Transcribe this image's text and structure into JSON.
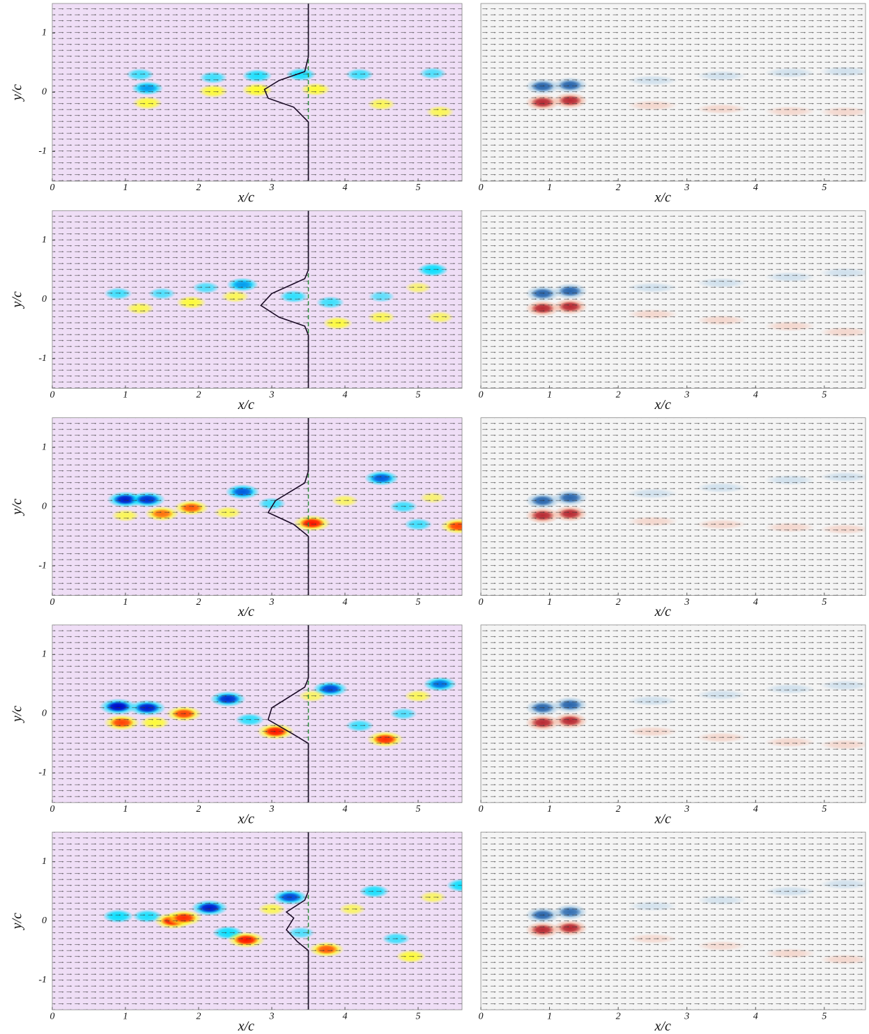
{
  "chart_data": [
    {
      "type": "field",
      "xlabel": "x/c",
      "ylabel": "y/c",
      "xlim": [
        0,
        5.6
      ],
      "ylim": [
        -1.5,
        1.5
      ],
      "xticks": [
        0,
        1,
        2,
        3,
        4,
        5
      ],
      "yticks": [
        -1,
        0,
        1
      ],
      "background": "#efdef6",
      "colors": [
        "#0000c8",
        "#00e0ff",
        "#ffff20",
        "#ff1000"
      ],
      "reference_x": 3.5,
      "profile": {
        "x": [
          3.5,
          3.5,
          3.45,
          3.1,
          2.9,
          2.95,
          3.3,
          3.5,
          3.5
        ],
        "y": [
          1.5,
          0.6,
          0.35,
          0.2,
          0.05,
          -0.1,
          -0.25,
          -0.5,
          -1.5
        ]
      },
      "vortices": [
        {
          "x": 1.3,
          "y": 0.07,
          "value": -0.6
        },
        {
          "x": 1.2,
          "y": 0.3,
          "value": -0.4
        },
        {
          "x": 2.2,
          "y": 0.25,
          "value": -0.4
        },
        {
          "x": 2.8,
          "y": 0.28,
          "value": -0.5
        },
        {
          "x": 3.4,
          "y": 0.3,
          "value": -0.5
        },
        {
          "x": 4.2,
          "y": 0.3,
          "value": -0.4
        },
        {
          "x": 5.2,
          "y": 0.32,
          "value": -0.35
        },
        {
          "x": 1.3,
          "y": -0.18,
          "value": 0.5
        },
        {
          "x": 2.2,
          "y": 0.02,
          "value": 0.5
        },
        {
          "x": 2.8,
          "y": 0.04,
          "value": 0.55
        },
        {
          "x": 3.6,
          "y": 0.05,
          "value": 0.5
        },
        {
          "x": 4.5,
          "y": -0.2,
          "value": 0.4
        },
        {
          "x": 5.3,
          "y": -0.33,
          "value": 0.4
        }
      ]
    },
    {
      "type": "field",
      "xlabel": "x/c",
      "xlim": [
        0,
        5.6
      ],
      "ylim": [
        -1.5,
        1.5
      ],
      "xticks": [
        0,
        1,
        2,
        3,
        4,
        5
      ],
      "background": "#f4f4f4",
      "colors": [
        "#1c5aa6",
        "#9cc4e2",
        "#f3ad96",
        "#b01a28"
      ],
      "vortices": [
        {
          "x": 0.9,
          "y": 0.1,
          "value": -0.9
        },
        {
          "x": 1.3,
          "y": 0.12,
          "value": -0.9
        },
        {
          "x": 0.9,
          "y": -0.17,
          "value": 0.9
        },
        {
          "x": 1.3,
          "y": -0.14,
          "value": 0.9
        },
        {
          "x": 2.5,
          "y": 0.2,
          "value": -0.15
        },
        {
          "x": 3.5,
          "y": 0.28,
          "value": -0.15
        },
        {
          "x": 4.5,
          "y": 0.33,
          "value": -0.15
        },
        {
          "x": 5.3,
          "y": 0.35,
          "value": -0.15
        },
        {
          "x": 2.5,
          "y": -0.22,
          "value": 0.15
        },
        {
          "x": 3.5,
          "y": -0.28,
          "value": 0.15
        },
        {
          "x": 4.5,
          "y": -0.32,
          "value": 0.15
        },
        {
          "x": 5.3,
          "y": -0.33,
          "value": 0.15
        }
      ]
    },
    {
      "type": "field",
      "xlabel": "x/c",
      "ylabel": "y/c",
      "xlim": [
        0,
        5.6
      ],
      "ylim": [
        -1.5,
        1.5
      ],
      "xticks": [
        0,
        1,
        2,
        3,
        4,
        5
      ],
      "yticks": [
        -1,
        0,
        1
      ],
      "background": "#efdef6",
      "colors": [
        "#0000c8",
        "#00e0ff",
        "#ffff20",
        "#ff1000"
      ],
      "reference_x": 3.5,
      "profile": {
        "x": [
          3.5,
          3.5,
          3.45,
          3.0,
          2.85,
          3.1,
          3.45,
          3.5,
          3.5
        ],
        "y": [
          1.5,
          0.5,
          0.35,
          0.1,
          -0.1,
          -0.3,
          -0.45,
          -0.6,
          -1.5
        ]
      },
      "vortices": [
        {
          "x": 0.9,
          "y": 0.1,
          "value": -0.4
        },
        {
          "x": 1.5,
          "y": 0.1,
          "value": -0.35
        },
        {
          "x": 2.1,
          "y": 0.2,
          "value": -0.35
        },
        {
          "x": 2.6,
          "y": 0.25,
          "value": -0.6
        },
        {
          "x": 3.3,
          "y": 0.05,
          "value": -0.45
        },
        {
          "x": 3.8,
          "y": -0.05,
          "value": -0.4
        },
        {
          "x": 4.5,
          "y": 0.05,
          "value": -0.3
        },
        {
          "x": 5.2,
          "y": 0.5,
          "value": -0.55
        },
        {
          "x": 1.2,
          "y": -0.15,
          "value": 0.4
        },
        {
          "x": 1.9,
          "y": -0.05,
          "value": 0.5
        },
        {
          "x": 2.5,
          "y": 0.05,
          "value": 0.4
        },
        {
          "x": 3.9,
          "y": -0.4,
          "value": 0.5
        },
        {
          "x": 4.5,
          "y": -0.3,
          "value": 0.4
        },
        {
          "x": 5.3,
          "y": -0.3,
          "value": 0.35
        },
        {
          "x": 5.0,
          "y": 0.2,
          "value": 0.3
        }
      ]
    },
    {
      "type": "field",
      "xlabel": "x/c",
      "xlim": [
        0,
        5.6
      ],
      "ylim": [
        -1.5,
        1.5
      ],
      "xticks": [
        0,
        1,
        2,
        3,
        4,
        5
      ],
      "background": "#f4f4f4",
      "colors": [
        "#1c5aa6",
        "#9cc4e2",
        "#f3ad96",
        "#b01a28"
      ],
      "vortices": [
        {
          "x": 0.9,
          "y": 0.1,
          "value": -0.9
        },
        {
          "x": 1.3,
          "y": 0.14,
          "value": -0.9
        },
        {
          "x": 0.9,
          "y": -0.15,
          "value": 0.9
        },
        {
          "x": 1.3,
          "y": -0.12,
          "value": 0.9
        },
        {
          "x": 2.5,
          "y": 0.2,
          "value": -0.15
        },
        {
          "x": 3.5,
          "y": 0.28,
          "value": -0.15
        },
        {
          "x": 4.5,
          "y": 0.38,
          "value": -0.15
        },
        {
          "x": 5.3,
          "y": 0.45,
          "value": -0.15
        },
        {
          "x": 2.5,
          "y": -0.25,
          "value": 0.15
        },
        {
          "x": 3.5,
          "y": -0.35,
          "value": 0.15
        },
        {
          "x": 4.5,
          "y": -0.45,
          "value": 0.15
        },
        {
          "x": 5.3,
          "y": -0.55,
          "value": 0.15
        }
      ]
    },
    {
      "type": "field",
      "xlabel": "x/c",
      "ylabel": "y/c",
      "xlim": [
        0,
        5.6
      ],
      "ylim": [
        -1.5,
        1.5
      ],
      "xticks": [
        0,
        1,
        2,
        3,
        4,
        5
      ],
      "yticks": [
        -1,
        0,
        1
      ],
      "background": "#efdef6",
      "colors": [
        "#0000c8",
        "#00e0ff",
        "#ffff20",
        "#ff1000"
      ],
      "reference_x": 3.5,
      "profile": {
        "x": [
          3.5,
          3.5,
          3.45,
          3.05,
          2.95,
          3.3,
          3.5,
          3.5
        ],
        "y": [
          1.5,
          0.6,
          0.4,
          0.1,
          -0.1,
          -0.3,
          -0.5,
          -1.5
        ]
      },
      "vortices": [
        {
          "x": 1.0,
          "y": 0.12,
          "value": -0.9
        },
        {
          "x": 1.3,
          "y": 0.12,
          "value": -0.85
        },
        {
          "x": 2.6,
          "y": 0.25,
          "value": -0.75
        },
        {
          "x": 3.0,
          "y": 0.05,
          "value": -0.4
        },
        {
          "x": 4.5,
          "y": 0.48,
          "value": -0.75
        },
        {
          "x": 4.8,
          "y": 0.0,
          "value": -0.4
        },
        {
          "x": 5.0,
          "y": -0.3,
          "value": -0.4
        },
        {
          "x": 1.0,
          "y": -0.15,
          "value": 0.4
        },
        {
          "x": 1.5,
          "y": -0.12,
          "value": 0.75
        },
        {
          "x": 1.9,
          "y": -0.02,
          "value": 0.8
        },
        {
          "x": 2.4,
          "y": -0.1,
          "value": 0.4
        },
        {
          "x": 3.55,
          "y": -0.28,
          "value": 0.95
        },
        {
          "x": 4.0,
          "y": 0.1,
          "value": 0.35
        },
        {
          "x": 5.55,
          "y": -0.33,
          "value": 0.85
        },
        {
          "x": 5.2,
          "y": 0.15,
          "value": 0.3
        }
      ]
    },
    {
      "type": "field",
      "xlabel": "x/c",
      "xlim": [
        0,
        5.6
      ],
      "ylim": [
        -1.5,
        1.5
      ],
      "xticks": [
        0,
        1,
        2,
        3,
        4,
        5
      ],
      "background": "#f4f4f4",
      "colors": [
        "#1c5aa6",
        "#9cc4e2",
        "#f3ad96",
        "#b01a28"
      ],
      "vortices": [
        {
          "x": 0.9,
          "y": 0.1,
          "value": -0.9
        },
        {
          "x": 1.3,
          "y": 0.15,
          "value": -0.9
        },
        {
          "x": 0.9,
          "y": -0.15,
          "value": 0.9
        },
        {
          "x": 1.3,
          "y": -0.12,
          "value": 0.9
        },
        {
          "x": 2.5,
          "y": 0.22,
          "value": -0.15
        },
        {
          "x": 3.5,
          "y": 0.32,
          "value": -0.15
        },
        {
          "x": 4.5,
          "y": 0.45,
          "value": -0.15
        },
        {
          "x": 5.3,
          "y": 0.5,
          "value": -0.15
        },
        {
          "x": 2.5,
          "y": -0.25,
          "value": 0.15
        },
        {
          "x": 3.5,
          "y": -0.3,
          "value": 0.15
        },
        {
          "x": 4.5,
          "y": -0.35,
          "value": 0.15
        },
        {
          "x": 5.3,
          "y": -0.38,
          "value": 0.15
        }
      ]
    },
    {
      "type": "field",
      "xlabel": "x/c",
      "ylabel": "y/c",
      "xlim": [
        0,
        5.6
      ],
      "ylim": [
        -1.5,
        1.5
      ],
      "xticks": [
        0,
        1,
        2,
        3,
        4,
        5
      ],
      "yticks": [
        -1,
        0,
        1
      ],
      "background": "#efdef6",
      "colors": [
        "#0000c8",
        "#00e0ff",
        "#ffff20",
        "#ff1000"
      ],
      "reference_x": 3.5,
      "profile": {
        "x": [
          3.5,
          3.5,
          3.45,
          3.0,
          2.95,
          3.3,
          3.5,
          3.5
        ],
        "y": [
          1.5,
          0.6,
          0.45,
          0.1,
          -0.1,
          -0.35,
          -0.5,
          -1.5
        ]
      },
      "vortices": [
        {
          "x": 0.9,
          "y": 0.12,
          "value": -0.95
        },
        {
          "x": 1.3,
          "y": 0.1,
          "value": -0.9
        },
        {
          "x": 2.4,
          "y": 0.25,
          "value": -0.85
        },
        {
          "x": 2.7,
          "y": -0.1,
          "value": -0.45
        },
        {
          "x": 3.8,
          "y": 0.42,
          "value": -0.8
        },
        {
          "x": 4.2,
          "y": -0.2,
          "value": -0.4
        },
        {
          "x": 4.8,
          "y": 0.0,
          "value": -0.35
        },
        {
          "x": 5.3,
          "y": 0.5,
          "value": -0.7
        },
        {
          "x": 0.95,
          "y": -0.15,
          "value": 0.85
        },
        {
          "x": 1.4,
          "y": -0.15,
          "value": 0.5
        },
        {
          "x": 1.8,
          "y": 0.0,
          "value": 0.85
        },
        {
          "x": 3.05,
          "y": -0.3,
          "value": 0.95
        },
        {
          "x": 3.55,
          "y": 0.3,
          "value": 0.35
        },
        {
          "x": 4.55,
          "y": -0.43,
          "value": 0.9
        },
        {
          "x": 5.0,
          "y": 0.3,
          "value": 0.4
        }
      ]
    },
    {
      "type": "field",
      "xlabel": "x/c",
      "xlim": [
        0,
        5.6
      ],
      "ylim": [
        -1.5,
        1.5
      ],
      "xticks": [
        0,
        1,
        2,
        3,
        4,
        5
      ],
      "background": "#f4f4f4",
      "colors": [
        "#1c5aa6",
        "#9cc4e2",
        "#f3ad96",
        "#b01a28"
      ],
      "vortices": [
        {
          "x": 0.9,
          "y": 0.1,
          "value": -0.9
        },
        {
          "x": 1.3,
          "y": 0.15,
          "value": -0.9
        },
        {
          "x": 0.9,
          "y": -0.15,
          "value": 0.9
        },
        {
          "x": 1.3,
          "y": -0.12,
          "value": 0.9
        },
        {
          "x": 2.5,
          "y": 0.22,
          "value": -0.15
        },
        {
          "x": 3.5,
          "y": 0.32,
          "value": -0.15
        },
        {
          "x": 4.5,
          "y": 0.42,
          "value": -0.15
        },
        {
          "x": 5.3,
          "y": 0.48,
          "value": -0.15
        },
        {
          "x": 2.5,
          "y": -0.3,
          "value": 0.15
        },
        {
          "x": 3.5,
          "y": -0.4,
          "value": 0.15
        },
        {
          "x": 4.5,
          "y": -0.48,
          "value": 0.15
        },
        {
          "x": 5.3,
          "y": -0.52,
          "value": 0.15
        }
      ]
    },
    {
      "type": "field",
      "xlabel": "x/c",
      "ylabel": "y/c",
      "xlim": [
        0,
        5.6
      ],
      "ylim": [
        -1.5,
        1.5
      ],
      "xticks": [
        0,
        1,
        2,
        3,
        4,
        5
      ],
      "yticks": [
        -1,
        0,
        1
      ],
      "background": "#efdef6",
      "colors": [
        "#0000c8",
        "#00e0ff",
        "#ffff20",
        "#ff1000"
      ],
      "reference_x": 3.5,
      "profile": {
        "x": [
          3.5,
          3.5,
          3.45,
          3.2,
          3.3,
          3.25,
          3.2,
          3.35,
          3.5,
          3.5
        ],
        "y": [
          1.5,
          0.5,
          0.35,
          0.15,
          0.05,
          -0.05,
          -0.15,
          -0.35,
          -0.5,
          -1.5
        ]
      },
      "vortices": [
        {
          "x": 0.9,
          "y": 0.08,
          "value": -0.55
        },
        {
          "x": 1.3,
          "y": 0.08,
          "value": -0.5
        },
        {
          "x": 2.15,
          "y": 0.22,
          "value": -0.9
        },
        {
          "x": 2.4,
          "y": -0.2,
          "value": -0.55
        },
        {
          "x": 3.25,
          "y": 0.4,
          "value": -0.8
        },
        {
          "x": 3.4,
          "y": -0.2,
          "value": -0.35
        },
        {
          "x": 4.4,
          "y": 0.5,
          "value": -0.5
        },
        {
          "x": 4.7,
          "y": -0.3,
          "value": -0.4
        },
        {
          "x": 5.6,
          "y": 0.6,
          "value": -0.55
        },
        {
          "x": 1.65,
          "y": 0.0,
          "value": 0.95
        },
        {
          "x": 1.8,
          "y": 0.05,
          "value": 0.9
        },
        {
          "x": 2.65,
          "y": -0.32,
          "value": 0.95
        },
        {
          "x": 3.0,
          "y": 0.2,
          "value": 0.4
        },
        {
          "x": 3.75,
          "y": -0.48,
          "value": 0.8
        },
        {
          "x": 4.1,
          "y": 0.2,
          "value": 0.35
        },
        {
          "x": 4.9,
          "y": -0.6,
          "value": 0.5
        },
        {
          "x": 5.2,
          "y": 0.4,
          "value": 0.35
        }
      ]
    },
    {
      "type": "field",
      "xlabel": "x/c",
      "xlim": [
        0,
        5.6
      ],
      "ylim": [
        -1.5,
        1.5
      ],
      "xticks": [
        0,
        1,
        2,
        3,
        4,
        5
      ],
      "background": "#f4f4f4",
      "colors": [
        "#1c5aa6",
        "#9cc4e2",
        "#f3ad96",
        "#b01a28"
      ],
      "vortices": [
        {
          "x": 0.9,
          "y": 0.1,
          "value": -0.9
        },
        {
          "x": 1.3,
          "y": 0.15,
          "value": -0.85
        },
        {
          "x": 0.9,
          "y": -0.15,
          "value": 0.9
        },
        {
          "x": 1.3,
          "y": -0.12,
          "value": 0.9
        },
        {
          "x": 2.5,
          "y": 0.25,
          "value": -0.12
        },
        {
          "x": 3.5,
          "y": 0.35,
          "value": -0.12
        },
        {
          "x": 4.5,
          "y": 0.5,
          "value": -0.15
        },
        {
          "x": 5.3,
          "y": 0.62,
          "value": -0.15
        },
        {
          "x": 2.5,
          "y": -0.3,
          "value": 0.12
        },
        {
          "x": 3.5,
          "y": -0.42,
          "value": 0.12
        },
        {
          "x": 4.5,
          "y": -0.55,
          "value": 0.15
        },
        {
          "x": 5.3,
          "y": -0.65,
          "value": 0.15
        }
      ]
    }
  ]
}
